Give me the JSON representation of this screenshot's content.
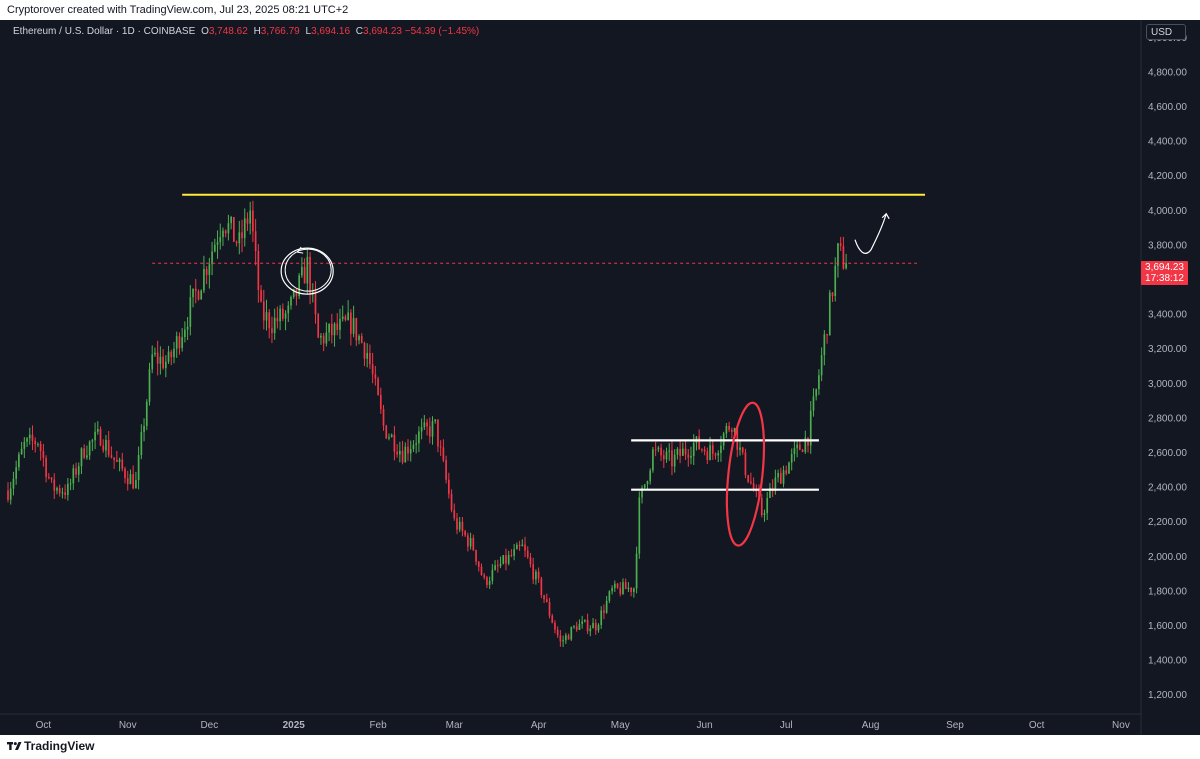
{
  "header": {
    "attribution": "Cryptorover created with TradingView.com, Jul 23, 2025 08:21 UTC+2"
  },
  "legend": {
    "symbol": "Ethereum / U.S. Dollar · 1D · COINBASE",
    "open_label": "O",
    "open": "3,748.62",
    "high_label": "H",
    "high": "3,766.79",
    "low_label": "L",
    "low": "3,694.16",
    "close_label": "C",
    "close": "3,694.23",
    "change": "−54.39 (−1.45%)"
  },
  "price_axis": {
    "currency": "USD",
    "last_price": "3,694.23",
    "countdown": "17:38:12"
  },
  "footer": {
    "brand": "TradingView"
  },
  "colors": {
    "background": "#131722",
    "up": "#26a69a",
    "up_bright": "#4caf50",
    "down": "#f23645",
    "resistance": "#ffeb3b",
    "box_lines": "#ffffff",
    "price_line": "#f23645"
  },
  "chart_data": {
    "type": "candlestick",
    "timeframe": "1D",
    "ylim": [
      1100,
      5100
    ],
    "y_ticks": [
      1200,
      1400,
      1600,
      1800,
      2000,
      2200,
      2400,
      2600,
      2800,
      3000,
      3200,
      3400,
      3600,
      3800,
      4000,
      4200,
      4400,
      4600,
      4800,
      5000
    ],
    "y_tick_labels": [
      "1,200.00",
      "1,400.00",
      "1,600.00",
      "1,800.00",
      "2,000.00",
      "2,200.00",
      "2,400.00",
      "2,600.00",
      "2,800.00",
      "3,000.00",
      "3,200.00",
      "3,400.00",
      "3,600.00",
      "3,800.00",
      "4,000.00",
      "4,200.00",
      "4,400.00",
      "4,600.00",
      "4,800.00",
      "5,000.00"
    ],
    "x_range": [
      "2024-09-18",
      "2025-11-08"
    ],
    "x_ticks": [
      {
        "date": "2024-10-01",
        "label": "Oct"
      },
      {
        "date": "2024-11-01",
        "label": "Nov"
      },
      {
        "date": "2024-12-01",
        "label": "Dec"
      },
      {
        "date": "2025-01-01",
        "label": "2025"
      },
      {
        "date": "2025-02-01",
        "label": "Feb"
      },
      {
        "date": "2025-03-01",
        "label": "Mar"
      },
      {
        "date": "2025-04-01",
        "label": "Apr"
      },
      {
        "date": "2025-05-01",
        "label": "May"
      },
      {
        "date": "2025-06-01",
        "label": "Jun"
      },
      {
        "date": "2025-07-01",
        "label": "Jul"
      },
      {
        "date": "2025-08-01",
        "label": "Aug"
      },
      {
        "date": "2025-09-01",
        "label": "Sep"
      },
      {
        "date": "2025-10-01",
        "label": "Oct"
      },
      {
        "date": "2025-11-01",
        "label": "Nov"
      }
    ],
    "close_path": [
      {
        "date": "2024-09-18",
        "close": 2380
      },
      {
        "date": "2024-09-24",
        "close": 2640
      },
      {
        "date": "2024-09-29",
        "close": 2670
      },
      {
        "date": "2024-10-04",
        "close": 2400
      },
      {
        "date": "2024-10-10",
        "close": 2380
      },
      {
        "date": "2024-10-16",
        "close": 2620
      },
      {
        "date": "2024-10-22",
        "close": 2700
      },
      {
        "date": "2024-10-28",
        "close": 2530
      },
      {
        "date": "2024-11-04",
        "close": 2420
      },
      {
        "date": "2024-11-10",
        "close": 3150
      },
      {
        "date": "2024-11-16",
        "close": 3120
      },
      {
        "date": "2024-11-22",
        "close": 3350
      },
      {
        "date": "2024-11-28",
        "close": 3600
      },
      {
        "date": "2024-12-06",
        "close": 3950
      },
      {
        "date": "2024-12-12",
        "close": 3800
      },
      {
        "date": "2024-12-16",
        "close": 4000
      },
      {
        "date": "2024-12-20",
        "close": 3400
      },
      {
        "date": "2024-12-24",
        "close": 3350
      },
      {
        "date": "2024-12-30",
        "close": 3400
      },
      {
        "date": "2025-01-06",
        "close": 3680
      },
      {
        "date": "2025-01-10",
        "close": 3250
      },
      {
        "date": "2025-01-16",
        "close": 3300
      },
      {
        "date": "2025-01-22",
        "close": 3350
      },
      {
        "date": "2025-01-28",
        "close": 3180
      },
      {
        "date": "2025-02-03",
        "close": 2750
      },
      {
        "date": "2025-02-10",
        "close": 2600
      },
      {
        "date": "2025-02-16",
        "close": 2700
      },
      {
        "date": "2025-02-22",
        "close": 2750
      },
      {
        "date": "2025-03-01",
        "close": 2200
      },
      {
        "date": "2025-03-08",
        "close": 2050
      },
      {
        "date": "2025-03-12",
        "close": 1850
      },
      {
        "date": "2025-03-18",
        "close": 1950
      },
      {
        "date": "2025-03-26",
        "close": 2050
      },
      {
        "date": "2025-04-02",
        "close": 1800
      },
      {
        "date": "2025-04-09",
        "close": 1500
      },
      {
        "date": "2025-04-15",
        "close": 1600
      },
      {
        "date": "2025-04-22",
        "close": 1600
      },
      {
        "date": "2025-04-28",
        "close": 1800
      },
      {
        "date": "2025-05-06",
        "close": 1820
      },
      {
        "date": "2025-05-08",
        "close": 2300
      },
      {
        "date": "2025-05-13",
        "close": 2600
      },
      {
        "date": "2025-05-20",
        "close": 2550
      },
      {
        "date": "2025-05-28",
        "close": 2650
      },
      {
        "date": "2025-06-04",
        "close": 2600
      },
      {
        "date": "2025-06-11",
        "close": 2780
      },
      {
        "date": "2025-06-15",
        "close": 2550
      },
      {
        "date": "2025-06-22",
        "close": 2250
      },
      {
        "date": "2025-06-27",
        "close": 2430
      },
      {
        "date": "2025-07-03",
        "close": 2560
      },
      {
        "date": "2025-07-09",
        "close": 2700
      },
      {
        "date": "2025-07-12",
        "close": 2950
      },
      {
        "date": "2025-07-16",
        "close": 3350
      },
      {
        "date": "2025-07-20",
        "close": 3750
      },
      {
        "date": "2025-07-23",
        "close": 3694.23
      }
    ],
    "annotations": {
      "resistance_line": {
        "price": 4090,
        "from": "2024-11-21",
        "to": "2025-08-21",
        "color": "#ffeb3b"
      },
      "range_box": {
        "top": 2670,
        "bottom": 2385,
        "from": "2025-05-05",
        "to": "2025-07-13"
      },
      "current_price_line": {
        "price": 3694.23,
        "style": "dashed"
      },
      "sweep_ellipse": {
        "date": "2025-06-16",
        "low": 2060,
        "high": 2890
      },
      "retest_circle": {
        "date": "2025-01-03",
        "price": 3660
      },
      "projection_arrow": {
        "from": "2025-07-27",
        "to": "2025-08-06",
        "target": 3980
      }
    }
  }
}
